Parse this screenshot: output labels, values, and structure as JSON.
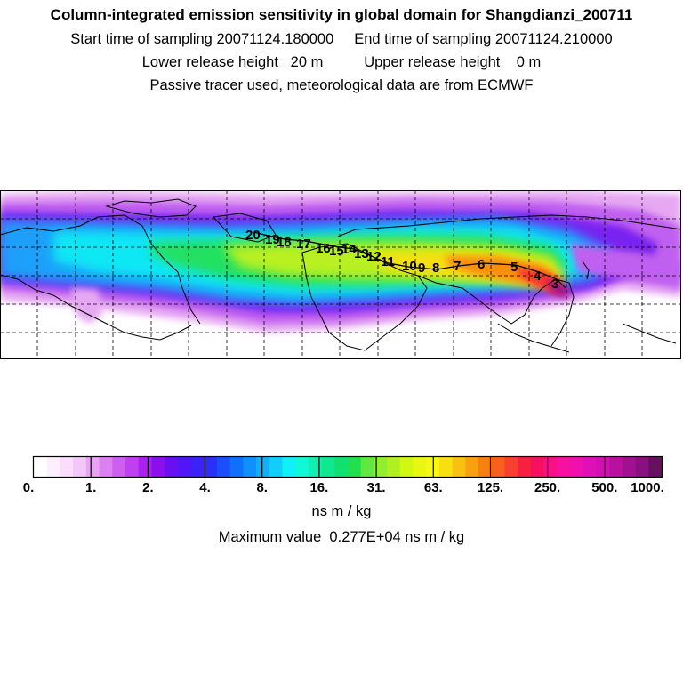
{
  "header": {
    "title": "Column-integrated emission sensitivity in global domain for Shangdianzi_200711",
    "line2": "Start time of sampling 20071124.180000     End time of sampling 20071124.210000",
    "line3": "Lower release height   20 m          Upper release height    0 m",
    "line4": "Passive tracer used, meteorological data are from ECMWF"
  },
  "map": {
    "ocean_color": "#ffffff",
    "grid": "dashed",
    "trajectory_day_labels": [
      "20",
      "19",
      "18",
      "17",
      "16",
      "15",
      "14",
      "13",
      "12",
      "11",
      "10",
      "9",
      "8",
      "7",
      "6",
      "5",
      "4",
      "3"
    ]
  },
  "colorbar": {
    "colors": [
      "#ffffff",
      "#fdeffd",
      "#f9ddfb",
      "#f3c6f8",
      "#e9a3f3",
      "#dd80ef",
      "#d05ff0",
      "#c040f0",
      "#ab22ee",
      "#8c10ee",
      "#6a10f0",
      "#5215f5",
      "#3a22f8",
      "#2a30fa",
      "#1a4ffb",
      "#1070fb",
      "#1090fa",
      "#10b0fb",
      "#10d0fb",
      "#10f0f8",
      "#10f8d8",
      "#10f0b0",
      "#10e890",
      "#10e070",
      "#20e050",
      "#60e840",
      "#90f030",
      "#b0f020",
      "#d0f810",
      "#e8f810",
      "#f8f810",
      "#f8e010",
      "#f8c010",
      "#f8a010",
      "#f88010",
      "#f86020",
      "#f84030",
      "#f82040",
      "#f81060",
      "#f81088",
      "#f810a0",
      "#f010b0",
      "#e010b8",
      "#d010b0",
      "#b810a0",
      "#a01090",
      "#881080",
      "#681060"
    ],
    "tick_labels": [
      "0.",
      "1.",
      "2.",
      "4.",
      "8.",
      "16.",
      "31.",
      "63.",
      "125.",
      "250.",
      "500.",
      "1000."
    ],
    "units": "ns m / kg",
    "max_value_text": "Maximum value  0.277E+04 ns m / kg"
  }
}
